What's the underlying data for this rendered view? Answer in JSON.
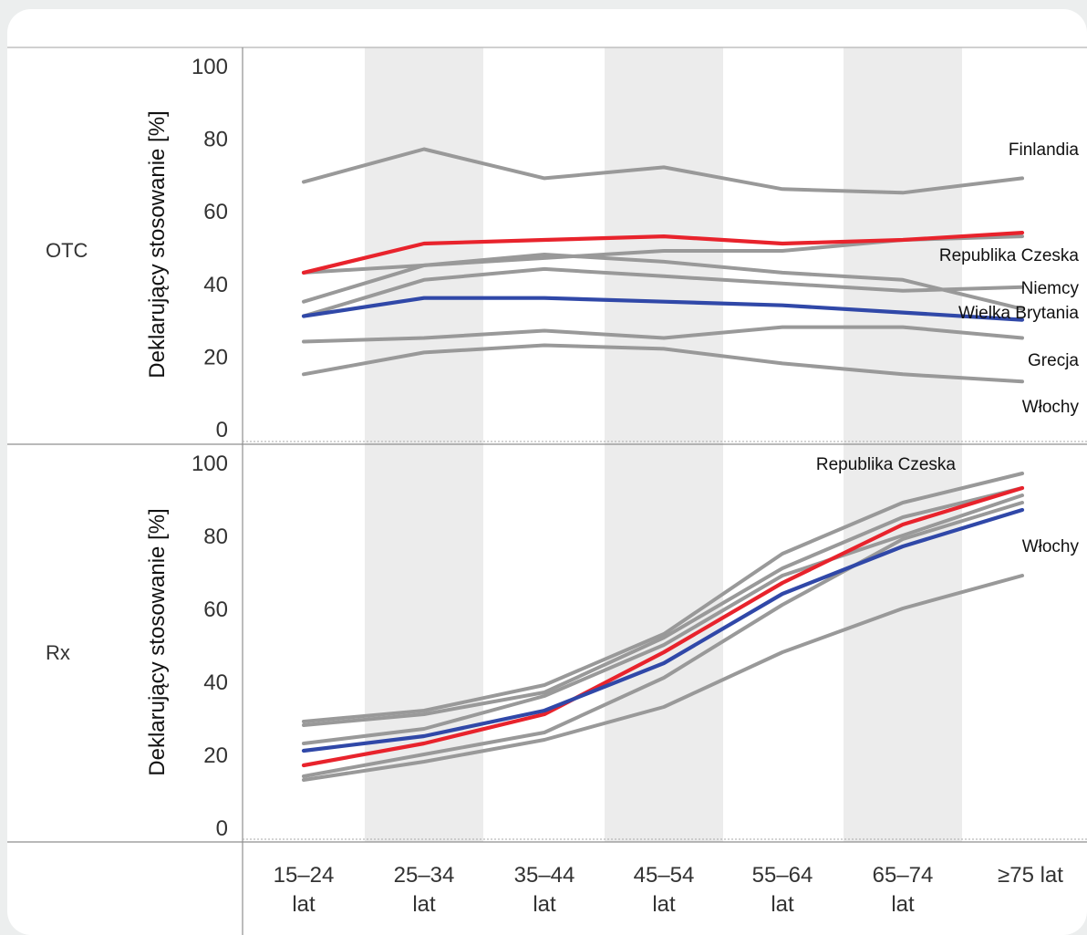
{
  "chart_data": [
    {
      "type": "line",
      "panel": "OTC",
      "ylabel": "Deklarujący stosowanie [%]",
      "ylim": [
        0,
        100
      ],
      "yticks": [
        0,
        20,
        40,
        60,
        80,
        100
      ],
      "categories": [
        "15–24 lat",
        "25–34 lat",
        "35–44 lat",
        "45–54 lat",
        "55–64 lat",
        "65–74 lat",
        "≥75 lat"
      ],
      "series": [
        {
          "name": "Finlandia",
          "color": "#999999",
          "values": [
            68,
            77,
            69,
            72,
            66,
            65,
            69
          ]
        },
        {
          "color": "#999999",
          "values": [
            43,
            45,
            47,
            49,
            49,
            52,
            53
          ]
        },
        {
          "color": "#999999",
          "values": [
            35,
            45,
            48,
            46,
            43,
            41,
            33
          ]
        },
        {
          "name": "Niemcy",
          "color": "#999999",
          "values": [
            31,
            41,
            44,
            42,
            40,
            38,
            39
          ]
        },
        {
          "color": "#999999",
          "values": [
            24,
            25,
            27,
            25,
            28,
            28,
            25
          ]
        },
        {
          "name": "Grecja",
          "color": "#999999",
          "values": [
            15,
            21,
            23,
            22,
            18,
            15,
            13
          ]
        },
        {
          "name": "Republika Czeska",
          "color": "#e8232c",
          "values": [
            43,
            51,
            52,
            53,
            51,
            52,
            54
          ]
        },
        {
          "name": "Wielka Brytania",
          "color": "#3048a8",
          "values": [
            31,
            36,
            36,
            35,
            34,
            32,
            30
          ]
        }
      ],
      "annotations": [
        "Finlandia",
        "Republika Czeska",
        "Niemcy",
        "Wielka Brytania",
        "Grecja",
        "Włochy"
      ],
      "grid": false
    },
    {
      "type": "line",
      "panel": "Rx",
      "ylabel": "Deklarujący stosowanie [%]",
      "ylim": [
        0,
        100
      ],
      "yticks": [
        0,
        20,
        40,
        60,
        80,
        100
      ],
      "categories": [
        "15–24 lat",
        "25–34 lat",
        "35–44 lat",
        "45–54 lat",
        "55–64 lat",
        "65–74 lat",
        "≥75 lat"
      ],
      "series": [
        {
          "color": "#999999",
          "values": [
            29,
            32,
            39,
            53,
            75,
            89,
            97
          ]
        },
        {
          "color": "#999999",
          "values": [
            28,
            31,
            37,
            52,
            71,
            85,
            93
          ]
        },
        {
          "color": "#999999",
          "values": [
            23,
            27,
            36,
            50,
            69,
            80,
            91
          ]
        },
        {
          "color": "#999999",
          "values": [
            14,
            20,
            26,
            41,
            61,
            79,
            89
          ]
        },
        {
          "color": "#999999",
          "values": [
            13,
            18,
            24,
            33,
            48,
            60,
            69
          ]
        },
        {
          "name": "Republika Czeska",
          "color": "#e8232c",
          "values": [
            17,
            23,
            31,
            48,
            67,
            83,
            93
          ]
        },
        {
          "color": "#3048a8",
          "values": [
            21,
            25,
            32,
            45,
            64,
            77,
            87
          ]
        }
      ],
      "annotations": [
        "Republika Czeska",
        "Włochy"
      ],
      "grid": false
    }
  ],
  "panels": {
    "otc_label": "OTC",
    "rx_label": "Rx"
  },
  "x_axis": {
    "tick_lines": [
      [
        "15–24",
        "lat"
      ],
      [
        "25–34",
        "lat"
      ],
      [
        "35–44",
        "lat"
      ],
      [
        "45–54",
        "lat"
      ],
      [
        "55–64",
        "lat"
      ],
      [
        "65–74",
        "lat"
      ],
      [
        "≥75  lat",
        ""
      ]
    ]
  }
}
